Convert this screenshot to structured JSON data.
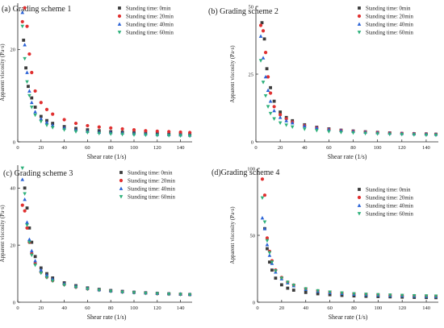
{
  "legend_labels": [
    "Standing time: 0min",
    "Standing time: 20min",
    "Standing time: 40min",
    "Standing time: 60min"
  ],
  "series_colors": [
    "#3b3b3b",
    "#e03030",
    "#2a62d6",
    "#2db07a"
  ],
  "marker_shapes": [
    "square",
    "circle",
    "triangle-up",
    "triangle-down"
  ],
  "chart_data": [
    {
      "type": "scatter",
      "title": "(a) Grading scheme 1",
      "xlabel": "Shear rate (1/s)",
      "ylabel": "Apparent viscosity (Pa·s)",
      "xlim": [
        0,
        150
      ],
      "ylim": [
        0,
        30
      ],
      "xticks": [
        0,
        20,
        40,
        60,
        80,
        100,
        120,
        140
      ],
      "yticks": [
        0,
        20
      ],
      "legend_position": "top-right",
      "series": [
        {
          "name": "Standing time: 0min",
          "x": [
            5,
            7,
            9,
            12,
            15,
            20,
            25,
            30,
            40,
            50,
            60,
            70,
            80,
            90,
            100,
            110,
            120,
            130,
            140,
            148
          ],
          "y": [
            22,
            16,
            12,
            9.5,
            7.5,
            5.5,
            4.6,
            4,
            3.3,
            2.9,
            2.6,
            2.4,
            2.2,
            2.1,
            2,
            1.9,
            1.8,
            1.7,
            1.65,
            1.6
          ]
        },
        {
          "name": "Standing time: 20min",
          "x": [
            4,
            6,
            8,
            10,
            12,
            15,
            20,
            25,
            30,
            40,
            50,
            60,
            70,
            80,
            90,
            100,
            110,
            120,
            130,
            140,
            148
          ],
          "y": [
            26,
            29,
            25,
            19,
            15,
            11,
            8.5,
            7,
            6,
            4.8,
            4,
            3.5,
            3.2,
            3,
            2.8,
            2.6,
            2.4,
            2.3,
            2.2,
            2.1,
            2
          ]
        },
        {
          "name": "Standing time: 40min",
          "x": [
            4,
            6,
            8,
            10,
            12,
            15,
            20,
            25,
            30,
            40,
            50,
            60,
            70,
            80,
            90,
            100,
            110,
            120,
            130,
            140,
            148
          ],
          "y": [
            28,
            21,
            15,
            11,
            8.5,
            6.5,
            5,
            4.2,
            3.6,
            3,
            2.6,
            2.3,
            2.1,
            2,
            1.9,
            1.8,
            1.7,
            1.6,
            1.55,
            1.5,
            1.45
          ]
        },
        {
          "name": "Standing time: 60min",
          "x": [
            4,
            6,
            8,
            10,
            12,
            15,
            20,
            25,
            30,
            40,
            50,
            60,
            70,
            80,
            90,
            100,
            110,
            120,
            130,
            140,
            148
          ],
          "y": [
            25,
            18,
            13,
            10,
            7.5,
            5.8,
            4.4,
            3.6,
            3.1,
            2.6,
            2.2,
            2,
            1.8,
            1.7,
            1.6,
            1.5,
            1.45,
            1.4,
            1.35,
            1.3,
            1.25
          ]
        }
      ]
    },
    {
      "type": "scatter",
      "title": "(b) Grading scheme 2",
      "xlabel": "Shear rate (1/s)",
      "ylabel": "Apparent viscosity (Pa·s)",
      "xlim": [
        0,
        150
      ],
      "ylim": [
        0,
        50
      ],
      "xticks": [
        0,
        20,
        40,
        60,
        80,
        100,
        120,
        140
      ],
      "yticks": [
        0,
        25,
        50
      ],
      "legend_position": "top-right",
      "series": [
        {
          "name": "Standing time: 0min",
          "x": [
            5,
            7,
            9,
            12,
            15,
            20,
            25,
            30,
            40,
            50,
            60,
            70,
            80,
            90,
            100,
            110,
            120,
            130,
            140,
            148
          ],
          "y": [
            44,
            38,
            27,
            20,
            15,
            11,
            9,
            7.8,
            6.3,
            5.4,
            4.8,
            4.3,
            4,
            3.7,
            3.5,
            3.3,
            3.1,
            3,
            2.9,
            2.8
          ]
        },
        {
          "name": "Standing time: 20min",
          "x": [
            4,
            6,
            8,
            10,
            12,
            15,
            20,
            25,
            30,
            40,
            50,
            60,
            70,
            80,
            90,
            100,
            110,
            120,
            130,
            140,
            148
          ],
          "y": [
            43,
            41,
            33,
            24,
            18,
            13,
            10,
            8.5,
            7.3,
            6,
            5.2,
            4.6,
            4.2,
            3.9,
            3.6,
            3.4,
            3.2,
            3.1,
            3,
            2.9,
            2.8
          ]
        },
        {
          "name": "Standing time: 40min",
          "x": [
            4,
            6,
            8,
            10,
            12,
            15,
            20,
            25,
            30,
            40,
            50,
            60,
            70,
            80,
            90,
            100,
            110,
            120,
            130,
            140,
            148
          ],
          "y": [
            39,
            31,
            24,
            19,
            15,
            11.5,
            9,
            7.8,
            7,
            5.9,
            5.2,
            4.6,
            4.2,
            3.9,
            3.6,
            3.4,
            3.2,
            3.1,
            3,
            2.9,
            2.8
          ]
        },
        {
          "name": "Standing time: 60min",
          "x": [
            4,
            6,
            8,
            10,
            12,
            15,
            20,
            25,
            30,
            40,
            50,
            60,
            70,
            80,
            90,
            100,
            110,
            120,
            130,
            140,
            148
          ],
          "y": [
            30,
            22,
            17,
            13,
            10.5,
            8.5,
            7,
            6.2,
            5.5,
            4.7,
            4.2,
            3.8,
            3.5,
            3.3,
            3.1,
            2.95,
            2.8,
            2.7,
            2.6,
            2.5,
            2.45
          ]
        }
      ]
    },
    {
      "type": "scatter",
      "title": "(c) Grading scheme 3",
      "xlabel": "Shear rate (1/s)",
      "ylabel": "Apparent viscosity (Pa·s)",
      "xlim": [
        0,
        150
      ],
      "ylim": [
        0,
        48
      ],
      "xticks": [
        0,
        20,
        40,
        60,
        80,
        100,
        120,
        140
      ],
      "yticks": [
        0,
        20,
        40
      ],
      "legend_position": "top-right",
      "series": [
        {
          "name": "Standing time: 0min",
          "x": [
            6,
            8,
            10,
            12,
            15,
            20,
            25,
            30,
            40,
            50,
            60,
            70,
            80,
            90,
            100,
            110,
            120,
            130,
            140,
            148
          ],
          "y": [
            40,
            33,
            26,
            21,
            16,
            12,
            10,
            8.5,
            6.8,
            5.8,
            5,
            4.5,
            4.1,
            3.8,
            3.5,
            3.3,
            3.1,
            2.95,
            2.8,
            2.7
          ]
        },
        {
          "name": "Standing time: 20min",
          "x": [
            4,
            6,
            8,
            10,
            12,
            15,
            20,
            25,
            30,
            40,
            50,
            60,
            70,
            80,
            90,
            100,
            110,
            120,
            130,
            140,
            148
          ],
          "y": [
            34,
            32,
            26,
            21,
            17,
            13.5,
            10.5,
            8.8,
            7.6,
            6.2,
            5.3,
            4.7,
            4.3,
            3.9,
            3.6,
            3.4,
            3.2,
            3,
            2.9,
            2.8,
            2.7
          ]
        },
        {
          "name": "Standing time: 40min",
          "x": [
            4,
            6,
            8,
            10,
            12,
            15,
            20,
            25,
            30,
            40,
            50,
            60,
            70,
            80,
            90,
            100,
            110,
            120,
            130,
            140,
            148
          ],
          "y": [
            43,
            36,
            28,
            22,
            18,
            14.5,
            11.3,
            9.5,
            8.1,
            6.5,
            5.6,
            4.9,
            4.4,
            4,
            3.7,
            3.5,
            3.3,
            3.1,
            3,
            2.9,
            2.8
          ]
        },
        {
          "name": "Standing time: 60min",
          "x": [
            4,
            6,
            8,
            10,
            12,
            15,
            20,
            25,
            30,
            40,
            50,
            60,
            70,
            80,
            90,
            100,
            110,
            120,
            130,
            140,
            148
          ],
          "y": [
            47,
            38,
            27,
            21,
            16.5,
            13,
            10.2,
            8.6,
            7.4,
            6,
            5.2,
            4.6,
            4.2,
            3.8,
            3.5,
            3.3,
            3.1,
            2.95,
            2.8,
            2.7,
            2.6
          ]
        }
      ]
    },
    {
      "type": "scatter",
      "title": "(d)Grading scheme 4",
      "xlabel": "Shear rate (1/s)",
      "ylabel": "Apparent viscosity (Pa·s)",
      "xlim": [
        0,
        150
      ],
      "ylim": [
        0,
        100
      ],
      "xticks": [
        0,
        20,
        40,
        60,
        80,
        100,
        120,
        140
      ],
      "yticks": [
        0,
        50,
        100
      ],
      "legend_position": "top-right",
      "series": [
        {
          "name": "Standing time: 0min",
          "x": [
            6,
            8,
            10,
            12,
            15,
            20,
            25,
            30,
            40,
            50,
            60,
            70,
            80,
            90,
            100,
            110,
            120,
            130,
            140,
            148
          ],
          "y": [
            55,
            40,
            30,
            24,
            18,
            13,
            10.5,
            9,
            7.3,
            6.3,
            5.6,
            5.1,
            4.7,
            4.4,
            4.2,
            4,
            3.8,
            3.6,
            3.5,
            3.4
          ]
        },
        {
          "name": "Standing time: 20min",
          "x": [
            4,
            6,
            8,
            10,
            12,
            15,
            20,
            25,
            30,
            40,
            50,
            60,
            70,
            80,
            90,
            100,
            110,
            120,
            130,
            140,
            148
          ],
          "y": [
            92,
            80,
            48,
            38,
            31,
            24,
            18.5,
            15,
            12.8,
            10,
            8.5,
            7.5,
            6.8,
            6.3,
            5.9,
            5.6,
            5.3,
            5,
            4.8,
            4.6,
            4.5
          ]
        },
        {
          "name": "Standing time: 40min",
          "x": [
            4,
            6,
            8,
            10,
            12,
            15,
            20,
            25,
            30,
            40,
            50,
            60,
            70,
            80,
            90,
            100,
            110,
            120,
            130,
            140,
            148
          ],
          "y": [
            63,
            55,
            43,
            35,
            29,
            22.5,
            17.5,
            14.5,
            12.3,
            9.6,
            8.2,
            7.2,
            6.5,
            6,
            5.6,
            5.3,
            5,
            4.8,
            4.6,
            4.4,
            4.3
          ]
        },
        {
          "name": "Standing time: 60min",
          "x": [
            4,
            6,
            8,
            10,
            12,
            15,
            20,
            25,
            30,
            40,
            50,
            60,
            70,
            80,
            90,
            100,
            110,
            120,
            130,
            140,
            148
          ],
          "y": [
            78,
            60,
            46,
            37,
            30,
            23.5,
            18,
            15,
            12.7,
            10,
            8.6,
            7.6,
            6.9,
            6.3,
            5.9,
            5.6,
            5.3,
            5.1,
            4.9,
            4.7,
            4.6
          ]
        }
      ]
    }
  ]
}
